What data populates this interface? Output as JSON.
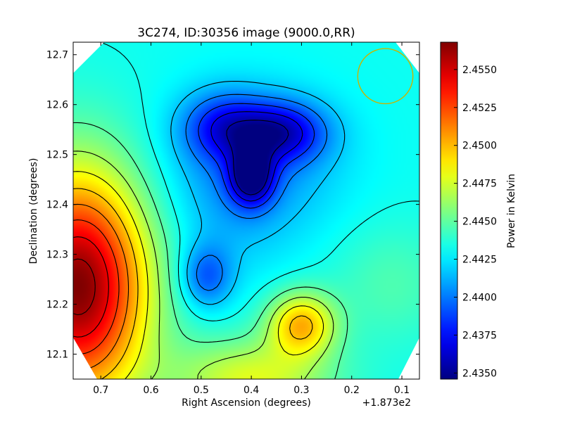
{
  "chart_data": {
    "type": "heatmap",
    "title": "3C274, ID:30356 image (9000.0,RR)",
    "xlabel": "Right Ascension (degrees)",
    "ylabel": "Declination (degrees)",
    "x_offset_label": "+1.873e2",
    "colorbar_label": "Power in Kelvin",
    "colormap": "jet",
    "colors": {
      "low": "#00007f",
      "high": "#7f0000",
      "contour": "#000000",
      "beam_circle": "#c8b400"
    },
    "x_ticks": [
      "0.7",
      "0.6",
      "0.5",
      "0.4",
      "0.3",
      "0.2",
      "0.1"
    ],
    "y_ticks": [
      "12.1",
      "12.2",
      "12.3",
      "12.4",
      "12.5",
      "12.6",
      "12.7"
    ],
    "colorbar_ticks": [
      "2.4350",
      "2.4375",
      "2.4400",
      "2.4425",
      "2.4450",
      "2.4475",
      "2.4500",
      "2.4525",
      "2.4550"
    ],
    "x_range": [
      0.755,
      0.065
    ],
    "y_range": [
      12.05,
      12.725
    ],
    "value_range": [
      2.4346,
      2.4568
    ],
    "base_level": 2.4432,
    "features": [
      {
        "kind": "max",
        "ra": 0.745,
        "dec": 12.235,
        "value": 2.4568
      },
      {
        "kind": "min",
        "ra": 0.4,
        "dec": 12.455,
        "value": 2.4358
      },
      {
        "kind": "min",
        "ra": 0.34,
        "dec": 12.545,
        "value": 2.4376
      },
      {
        "kind": "min",
        "ra": 0.455,
        "dec": 12.555,
        "value": 2.4388
      },
      {
        "kind": "min",
        "ra": 0.49,
        "dec": 12.255,
        "value": 2.4394
      },
      {
        "kind": "max",
        "ra": 0.3,
        "dec": 12.16,
        "value": 2.4498
      },
      {
        "kind": "max",
        "ra": 0.4,
        "dec": 12.05,
        "value": 2.4478
      },
      {
        "kind": "max",
        "ra": 0.12,
        "dec": 12.24,
        "value": 2.4446
      }
    ],
    "contour_count": 14,
    "beam": {
      "ra": 0.133,
      "dec": 12.657,
      "radius": 0.055
    }
  }
}
